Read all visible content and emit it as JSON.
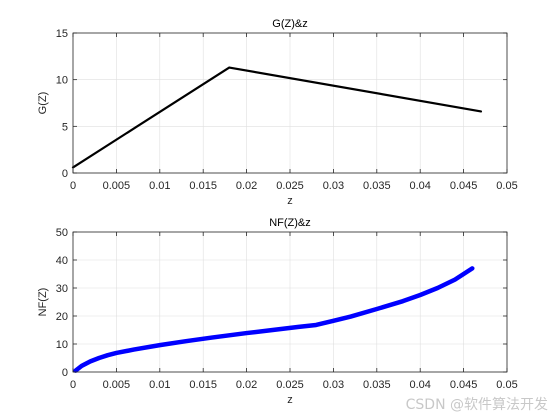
{
  "watermark": "CSDN @软件算法开发",
  "chart_data": [
    {
      "type": "line",
      "title": "G(Z)&z",
      "xlabel": "z",
      "ylabel": "G(Z)",
      "xlim": [
        0,
        0.05
      ],
      "ylim": [
        0,
        15
      ],
      "xticks": [
        0,
        0.005,
        0.01,
        0.015,
        0.02,
        0.025,
        0.03,
        0.035,
        0.04,
        0.045,
        0.05
      ],
      "xtick_labels": [
        "0",
        "0.005",
        "0.01",
        "0.015",
        "0.02",
        "0.025",
        "0.03",
        "0.035",
        "0.04",
        "0.045",
        "0.05"
      ],
      "yticks": [
        0,
        5,
        10,
        15
      ],
      "ytick_labels": [
        "0",
        "5",
        "10",
        "15"
      ],
      "grid": true,
      "series": [
        {
          "color": "#000000",
          "line_width": "thin",
          "x": [
            0,
            0.018,
            0.047
          ],
          "y": [
            0.6,
            11.3,
            6.6
          ]
        }
      ]
    },
    {
      "type": "line",
      "title": "NF(Z)&z",
      "xlabel": "z",
      "ylabel": "NF(Z)",
      "xlim": [
        0,
        0.05
      ],
      "ylim": [
        0,
        50
      ],
      "xticks": [
        0,
        0.005,
        0.01,
        0.015,
        0.02,
        0.025,
        0.03,
        0.035,
        0.04,
        0.045,
        0.05
      ],
      "xtick_labels": [
        "0",
        "0.005",
        "0.01",
        "0.015",
        "0.02",
        "0.025",
        "0.03",
        "0.035",
        "0.04",
        "0.045",
        "0.05"
      ],
      "yticks": [
        0,
        10,
        20,
        30,
        40,
        50
      ],
      "ytick_labels": [
        "0",
        "10",
        "20",
        "30",
        "40",
        "50"
      ],
      "grid": true,
      "series": [
        {
          "color": "#0000ff",
          "line_width": "thick",
          "x": [
            0.0003,
            0.001,
            0.002,
            0.003,
            0.004,
            0.005,
            0.007,
            0.01,
            0.013,
            0.016,
            0.018,
            0.02,
            0.023,
            0.026,
            0.028,
            0.03,
            0.032,
            0.035,
            0.038,
            0.04,
            0.042,
            0.044,
            0.045,
            0.046
          ],
          "y": [
            0.5,
            2.2,
            3.8,
            5.0,
            6.0,
            6.8,
            8.0,
            9.6,
            11.0,
            12.3,
            13.1,
            13.9,
            15.0,
            16.1,
            16.8,
            18.3,
            19.8,
            22.5,
            25.3,
            27.5,
            30.0,
            33.0,
            35.0,
            37.0
          ]
        }
      ]
    }
  ]
}
